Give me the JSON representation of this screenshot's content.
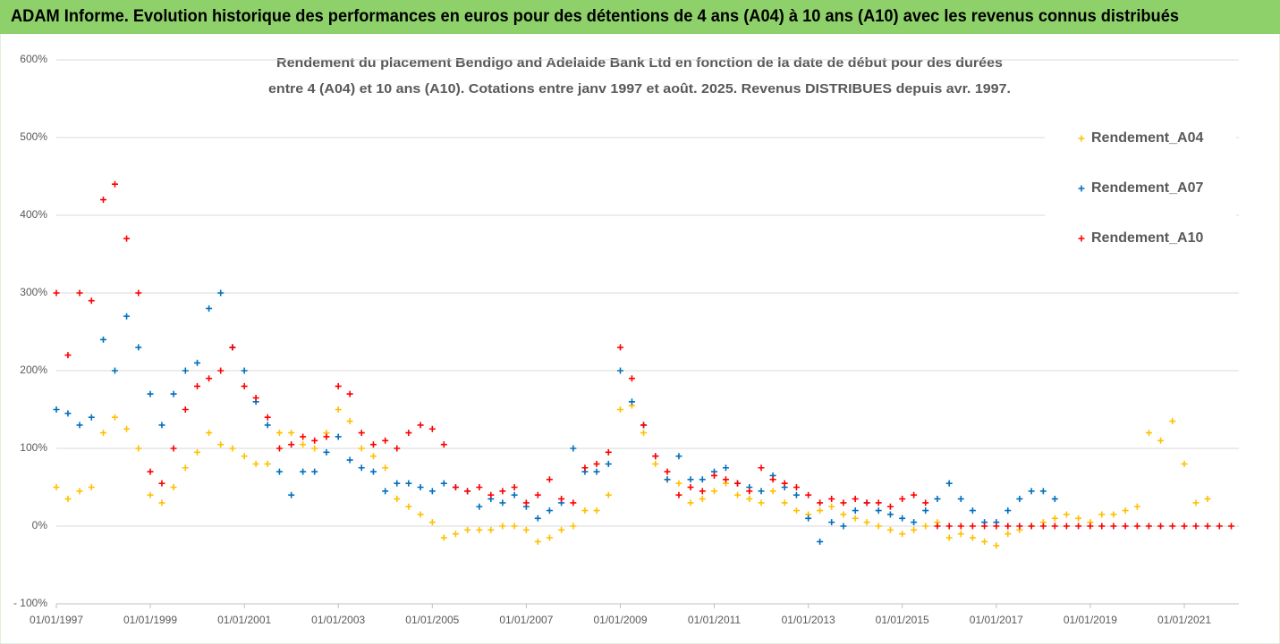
{
  "chart_data": {
    "type": "scatter",
    "banner": "ADAM Informe. Evolution historique des performances en euros pour des détentions de 4 ans (A04) à 10 ans (A10) avec les revenus connus distribués",
    "subtitle": [
      "Rendement du placement Bendigo and Adelaide Bank Ltd en fonction de la date de début pour des durées",
      "entre 4 (A04) et 10 ans (A10). Cotations entre janv 1997 et août. 2025. Revenus DISTRIBUES depuis avr. 1997."
    ],
    "x": [
      "1997-01-01",
      "1997-04-01",
      "1997-07-01",
      "1997-10-01",
      "1998-01-01",
      "1998-04-01",
      "1998-07-01",
      "1998-10-01",
      "1999-01-01",
      "1999-04-01",
      "1999-07-01",
      "1999-10-01",
      "2000-01-01",
      "2000-04-01",
      "2000-07-01",
      "2000-10-01",
      "2001-01-01",
      "2001-04-01",
      "2001-07-01",
      "2001-10-01",
      "2002-01-01",
      "2002-04-01",
      "2002-07-01",
      "2002-10-01",
      "2003-01-01",
      "2003-04-01",
      "2003-07-01",
      "2003-10-01",
      "2004-01-01",
      "2004-04-01",
      "2004-07-01",
      "2004-10-01",
      "2005-01-01",
      "2005-04-01",
      "2005-07-01",
      "2005-10-01",
      "2006-01-01",
      "2006-04-01",
      "2006-07-01",
      "2006-10-01",
      "2007-01-01",
      "2007-04-01",
      "2007-07-01",
      "2007-10-01",
      "2008-01-01",
      "2008-04-01",
      "2008-07-01",
      "2008-10-01",
      "2009-01-01",
      "2009-04-01",
      "2009-07-01",
      "2009-10-01",
      "2010-01-01",
      "2010-04-01",
      "2010-07-01",
      "2010-10-01",
      "2011-01-01",
      "2011-04-01",
      "2011-07-01",
      "2011-10-01",
      "2012-01-01",
      "2012-04-01",
      "2012-07-01",
      "2012-10-01",
      "2013-01-01",
      "2013-04-01",
      "2013-07-01",
      "2013-10-01",
      "2014-01-01",
      "2014-04-01",
      "2014-07-01",
      "2014-10-01",
      "2015-01-01",
      "2015-04-01",
      "2015-07-01",
      "2015-10-01",
      "2016-01-01",
      "2016-04-01",
      "2016-07-01",
      "2016-10-01",
      "2017-01-01",
      "2017-04-01",
      "2017-07-01",
      "2017-10-01",
      "2018-01-01",
      "2018-04-01",
      "2018-07-01",
      "2018-10-01",
      "2019-01-01",
      "2019-04-01",
      "2019-07-01",
      "2019-10-01",
      "2020-01-01",
      "2020-04-01",
      "2020-07-01",
      "2020-10-01",
      "2021-01-01",
      "2021-04-01",
      "2021-07-01",
      "2021-10-01",
      "2022-01-01"
    ],
    "series": [
      {
        "name": "Rendement_A04",
        "color": "#FFC000",
        "values": [
          50,
          35,
          45,
          50,
          120,
          140,
          125,
          100,
          40,
          30,
          50,
          75,
          95,
          120,
          105,
          100,
          90,
          80,
          80,
          120,
          120,
          105,
          100,
          120,
          150,
          135,
          100,
          90,
          75,
          35,
          25,
          15,
          5,
          -15,
          -10,
          -5,
          -5,
          -5,
          0,
          0,
          -5,
          -20,
          -15,
          -5,
          0,
          20,
          20,
          40,
          150,
          155,
          120,
          80,
          60,
          55,
          30,
          35,
          45,
          55,
          40,
          35,
          30,
          45,
          30,
          20,
          15,
          20,
          25,
          15,
          10,
          5,
          0,
          -5,
          -10,
          -5,
          0,
          5,
          -15,
          -10,
          -15,
          -20,
          -25,
          -10,
          -5,
          0,
          5,
          10,
          15,
          10,
          5,
          15,
          15,
          20,
          25,
          120,
          110,
          135,
          80,
          30,
          35,
          null,
          null
        ]
      },
      {
        "name": "Rendement_A07",
        "color": "#0070C0",
        "values": [
          150,
          145,
          130,
          140,
          240,
          200,
          270,
          230,
          170,
          130,
          170,
          200,
          210,
          280,
          300,
          230,
          200,
          160,
          130,
          70,
          40,
          70,
          70,
          95,
          115,
          85,
          75,
          70,
          45,
          55,
          55,
          50,
          45,
          55,
          50,
          45,
          25,
          35,
          30,
          40,
          25,
          10,
          20,
          30,
          100,
          70,
          70,
          80,
          200,
          160,
          130,
          90,
          60,
          90,
          60,
          60,
          70,
          75,
          55,
          50,
          45,
          65,
          50,
          40,
          10,
          -20,
          5,
          0,
          20,
          30,
          20,
          15,
          10,
          5,
          20,
          35,
          55,
          35,
          20,
          5,
          5,
          20,
          35,
          45,
          45,
          35,
          null,
          null,
          null,
          null,
          null,
          null,
          null,
          null,
          null,
          null,
          null,
          null,
          null,
          null,
          null
        ]
      },
      {
        "name": "Rendement_A10",
        "color": "#FF0000",
        "values": [
          300,
          220,
          300,
          290,
          420,
          440,
          370,
          300,
          70,
          55,
          100,
          150,
          180,
          190,
          200,
          230,
          180,
          165,
          140,
          100,
          105,
          115,
          110,
          115,
          180,
          170,
          120,
          105,
          110,
          100,
          120,
          130,
          125,
          105,
          50,
          45,
          50,
          40,
          45,
          50,
          30,
          40,
          60,
          35,
          30,
          75,
          80,
          95,
          230,
          190,
          130,
          90,
          70,
          40,
          50,
          45,
          65,
          60,
          55,
          45,
          75,
          60,
          55,
          50,
          40,
          30,
          35,
          30,
          35,
          30,
          30,
          25,
          35,
          40,
          30,
          0,
          0,
          0,
          0,
          0,
          0,
          0,
          0,
          0,
          0,
          0,
          0,
          0,
          0,
          0,
          0,
          0,
          0,
          0,
          0,
          0,
          0,
          0,
          0,
          0,
          0
        ]
      }
    ],
    "xlim": [
      "1997-01-01",
      "2022-03-01"
    ],
    "xticks": [
      {
        "value": "1997-01-01",
        "label": "01/01/1997"
      },
      {
        "value": "1999-01-01",
        "label": "01/01/1999"
      },
      {
        "value": "2001-01-01",
        "label": "01/01/2001"
      },
      {
        "value": "2003-01-01",
        "label": "01/01/2003"
      },
      {
        "value": "2005-01-01",
        "label": "01/01/2005"
      },
      {
        "value": "2007-01-01",
        "label": "01/01/2007"
      },
      {
        "value": "2009-01-01",
        "label": "01/01/2009"
      },
      {
        "value": "2011-01-01",
        "label": "01/01/2011"
      },
      {
        "value": "2013-01-01",
        "label": "01/01/2013"
      },
      {
        "value": "2015-01-01",
        "label": "01/01/2015"
      },
      {
        "value": "2017-01-01",
        "label": "01/01/2017"
      },
      {
        "value": "2019-01-01",
        "label": "01/01/2019"
      },
      {
        "value": "2021-01-01",
        "label": "01/01/2021"
      }
    ],
    "ylim": [
      -100,
      600
    ],
    "yticks": [
      {
        "value": -100,
        "label": "- 100%"
      },
      {
        "value": 0,
        "label": "0%"
      },
      {
        "value": 100,
        "label": "100%"
      },
      {
        "value": 200,
        "label": "200%"
      },
      {
        "value": 300,
        "label": "300%"
      },
      {
        "value": 400,
        "label": "400%"
      },
      {
        "value": 500,
        "label": "500%"
      },
      {
        "value": 600,
        "label": "600%"
      }
    ],
    "grid": true,
    "legend": "top-right"
  }
}
